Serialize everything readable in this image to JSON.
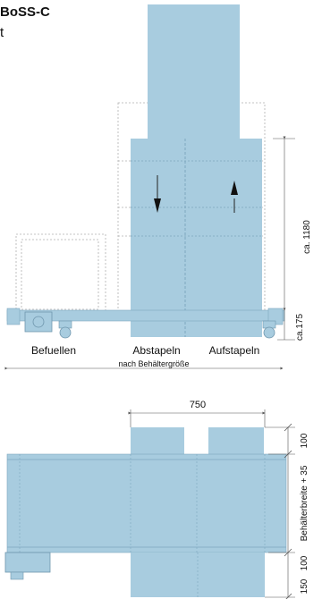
{
  "header": {
    "title": "BoSS-C",
    "subtitle": "t"
  },
  "side_view": {
    "stations": {
      "fill": "Befuellen",
      "unstack": "Abstapeln",
      "stack": "Aufstapeln"
    },
    "length_note": "nach Behältergröße",
    "dim_height": "ca. 1180",
    "dim_base": "ca.175"
  },
  "top_view": {
    "dim_width": "750",
    "dim_top": "100",
    "dim_middle": "Behälterbreite + 35",
    "dim_bottom_a": "100",
    "dim_bottom_b": "150"
  },
  "colors": {
    "fill": "#a8ccdf",
    "edge": "#7ea7bf",
    "ghost": "#b0b0b0",
    "dim": "#555555"
  }
}
